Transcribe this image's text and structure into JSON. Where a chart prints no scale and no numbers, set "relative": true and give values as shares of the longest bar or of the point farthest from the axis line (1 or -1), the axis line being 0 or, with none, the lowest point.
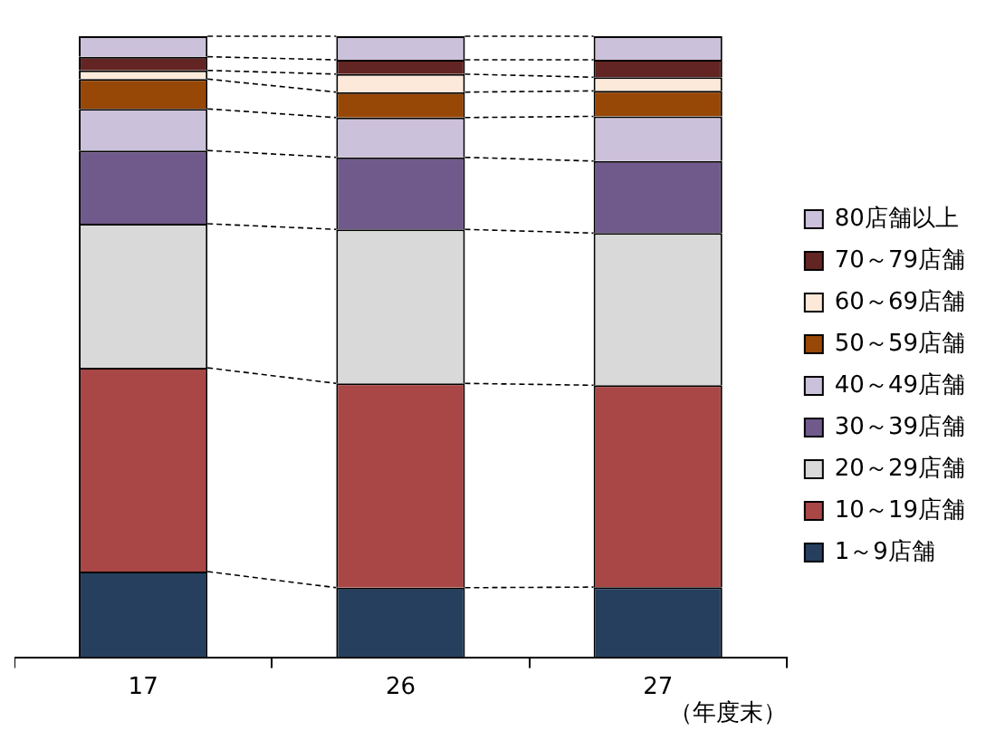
{
  "chart_data": {
    "type": "bar",
    "stacked": true,
    "relative": true,
    "xlabel": "（年度末）",
    "categories": [
      "17",
      "26",
      "27"
    ],
    "legend": "right",
    "series": [
      {
        "name": "1～9店舗",
        "color": "#263f5e",
        "values": [
          0.138,
          0.112,
          0.113
        ]
      },
      {
        "name": "10～19店舗",
        "color": "#a94646",
        "values": [
          0.328,
          0.329,
          0.325
        ]
      },
      {
        "name": "20～29店舗",
        "color": "#d9d9d9",
        "values": [
          0.232,
          0.248,
          0.245
        ]
      },
      {
        "name": "30～39店舗",
        "color": "#705a8c",
        "values": [
          0.118,
          0.116,
          0.116
        ]
      },
      {
        "name": "40～49店舗",
        "color": "#ccc1da",
        "values": [
          0.067,
          0.064,
          0.072
        ]
      },
      {
        "name": "50～59店舗",
        "color": "#974706",
        "values": [
          0.048,
          0.041,
          0.041
        ]
      },
      {
        "name": "60～69店舗",
        "color": "#fde9d9",
        "values": [
          0.014,
          0.029,
          0.022
        ]
      },
      {
        "name": "70～79店舗",
        "color": "#632523",
        "values": [
          0.022,
          0.023,
          0.028
        ]
      },
      {
        "name": "80店舗以上",
        "color": "#ccc1da",
        "values": [
          0.033,
          0.038,
          0.038
        ]
      }
    ]
  }
}
